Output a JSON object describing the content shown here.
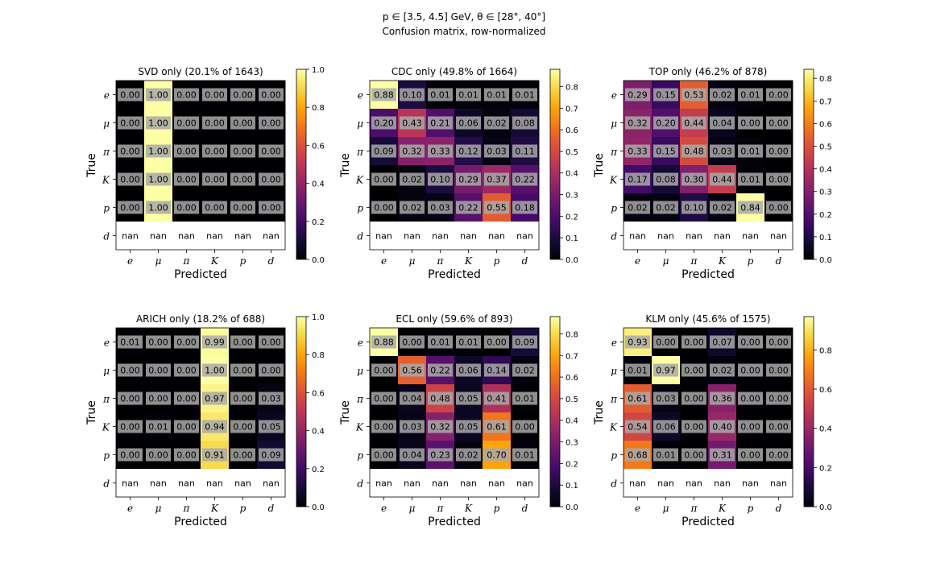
{
  "figure": {
    "suptitle_line1": "p ∈ [3.5, 4.5] GeV, θ ∈ [28°, 40°]",
    "suptitle_line2": "Confusion matrix, row-normalized"
  },
  "chart_data": [
    {
      "type": "heatmap",
      "title": "SVD only (20.1% of 1643)",
      "xlabel": "Predicted",
      "ylabel": "True",
      "x_categories": [
        "e",
        "μ",
        "π",
        "K",
        "p",
        "d"
      ],
      "y_categories": [
        "e",
        "μ",
        "π",
        "K",
        "p",
        "d"
      ],
      "values": [
        [
          0.0,
          1.0,
          0.0,
          0.0,
          0.0,
          0.0
        ],
        [
          0.0,
          1.0,
          0.0,
          0.0,
          0.0,
          0.0
        ],
        [
          0.0,
          1.0,
          0.0,
          0.0,
          0.0,
          0.0
        ],
        [
          0.0,
          1.0,
          0.0,
          0.0,
          0.0,
          0.0
        ],
        [
          0.0,
          1.0,
          0.0,
          0.0,
          0.0,
          0.0
        ],
        [
          null,
          null,
          null,
          null,
          null,
          null
        ]
      ],
      "colorbar_range": [
        0.0,
        1.0
      ],
      "colorbar_ticks": [
        "0.0",
        "0.2",
        "0.4",
        "0.6",
        "0.8",
        "1.0"
      ],
      "colormap": "inferno"
    },
    {
      "type": "heatmap",
      "title": "CDC only (49.8% of 1664)",
      "xlabel": "Predicted",
      "ylabel": "True",
      "x_categories": [
        "e",
        "μ",
        "π",
        "K",
        "p",
        "d"
      ],
      "y_categories": [
        "e",
        "μ",
        "π",
        "K",
        "p",
        "d"
      ],
      "values": [
        [
          0.88,
          0.1,
          0.01,
          0.01,
          0.01,
          0.01
        ],
        [
          0.2,
          0.43,
          0.21,
          0.06,
          0.02,
          0.08
        ],
        [
          0.09,
          0.32,
          0.33,
          0.12,
          0.03,
          0.11
        ],
        [
          0.0,
          0.02,
          0.1,
          0.29,
          0.37,
          0.22
        ],
        [
          0.0,
          0.02,
          0.03,
          0.22,
          0.55,
          0.18
        ],
        [
          null,
          null,
          null,
          null,
          null,
          null
        ]
      ],
      "colorbar_range": [
        0.0,
        0.88
      ],
      "colorbar_ticks": [
        "0.0",
        "0.1",
        "0.2",
        "0.3",
        "0.4",
        "0.5",
        "0.6",
        "0.7",
        "0.8"
      ],
      "colormap": "inferno"
    },
    {
      "type": "heatmap",
      "title": "TOP only (46.2% of 878)",
      "xlabel": "Predicted",
      "ylabel": "True",
      "x_categories": [
        "e",
        "μ",
        "π",
        "K",
        "p",
        "d"
      ],
      "y_categories": [
        "e",
        "μ",
        "π",
        "K",
        "p",
        "d"
      ],
      "values": [
        [
          0.29,
          0.15,
          0.53,
          0.02,
          0.01,
          0.0
        ],
        [
          0.32,
          0.2,
          0.44,
          0.04,
          0.0,
          0.0
        ],
        [
          0.33,
          0.15,
          0.48,
          0.03,
          0.01,
          0.0
        ],
        [
          0.17,
          0.08,
          0.3,
          0.44,
          0.01,
          0.0
        ],
        [
          0.02,
          0.02,
          0.1,
          0.02,
          0.84,
          0.0
        ],
        [
          null,
          null,
          null,
          null,
          null,
          null
        ]
      ],
      "colorbar_range": [
        0.0,
        0.84
      ],
      "colorbar_ticks": [
        "0.0",
        "0.1",
        "0.2",
        "0.3",
        "0.4",
        "0.5",
        "0.6",
        "0.7",
        "0.8"
      ],
      "colormap": "inferno"
    },
    {
      "type": "heatmap",
      "title": "ARICH only (18.2% of 688)",
      "xlabel": "Predicted",
      "ylabel": "True",
      "x_categories": [
        "e",
        "μ",
        "π",
        "K",
        "p",
        "d"
      ],
      "y_categories": [
        "e",
        "μ",
        "π",
        "K",
        "p",
        "d"
      ],
      "values": [
        [
          0.01,
          0.0,
          0.0,
          0.99,
          0.0,
          0.0
        ],
        [
          0.0,
          0.0,
          0.0,
          1.0,
          0.0,
          0.0
        ],
        [
          0.0,
          0.0,
          0.0,
          0.97,
          0.0,
          0.03
        ],
        [
          0.0,
          0.01,
          0.0,
          0.94,
          0.0,
          0.05
        ],
        [
          0.0,
          0.0,
          0.0,
          0.91,
          0.0,
          0.09
        ],
        [
          null,
          null,
          null,
          null,
          null,
          null
        ]
      ],
      "colorbar_range": [
        0.0,
        1.0
      ],
      "colorbar_ticks": [
        "0.0",
        "0.2",
        "0.4",
        "0.6",
        "0.8",
        "1.0"
      ],
      "colormap": "inferno"
    },
    {
      "type": "heatmap",
      "title": "ECL only (59.6% of 893)",
      "xlabel": "Predicted",
      "ylabel": "True",
      "x_categories": [
        "e",
        "μ",
        "π",
        "K",
        "p",
        "d"
      ],
      "y_categories": [
        "e",
        "μ",
        "π",
        "K",
        "p",
        "d"
      ],
      "values": [
        [
          0.88,
          0.0,
          0.01,
          0.01,
          0.0,
          0.09
        ],
        [
          0.0,
          0.56,
          0.22,
          0.06,
          0.14,
          0.02
        ],
        [
          0.0,
          0.04,
          0.48,
          0.05,
          0.41,
          0.01
        ],
        [
          0.0,
          0.03,
          0.32,
          0.05,
          0.61,
          0.0
        ],
        [
          0.0,
          0.04,
          0.23,
          0.02,
          0.7,
          0.01
        ],
        [
          null,
          null,
          null,
          null,
          null,
          null
        ]
      ],
      "colorbar_range": [
        0.0,
        0.88
      ],
      "colorbar_ticks": [
        "0.0",
        "0.1",
        "0.2",
        "0.3",
        "0.4",
        "0.5",
        "0.6",
        "0.7",
        "0.8"
      ],
      "colormap": "inferno"
    },
    {
      "type": "heatmap",
      "title": "KLM only (45.6% of 1575)",
      "xlabel": "Predicted",
      "ylabel": "True",
      "x_categories": [
        "e",
        "μ",
        "π",
        "K",
        "p",
        "d"
      ],
      "y_categories": [
        "e",
        "μ",
        "π",
        "K",
        "p",
        "d"
      ],
      "values": [
        [
          0.93,
          0.0,
          0.0,
          0.07,
          0.0,
          0.0
        ],
        [
          0.01,
          0.97,
          0.0,
          0.02,
          0.0,
          0.0
        ],
        [
          0.61,
          0.03,
          0.0,
          0.36,
          0.0,
          0.0
        ],
        [
          0.54,
          0.06,
          0.0,
          0.4,
          0.0,
          0.0
        ],
        [
          0.68,
          0.01,
          0.0,
          0.31,
          0.0,
          0.0
        ],
        [
          null,
          null,
          null,
          null,
          null,
          null
        ]
      ],
      "colorbar_range": [
        0.0,
        0.97
      ],
      "colorbar_ticks": [
        "0.0",
        "0.2",
        "0.4",
        "0.6",
        "0.8"
      ],
      "colormap": "inferno"
    }
  ],
  "nan_label": "nan"
}
